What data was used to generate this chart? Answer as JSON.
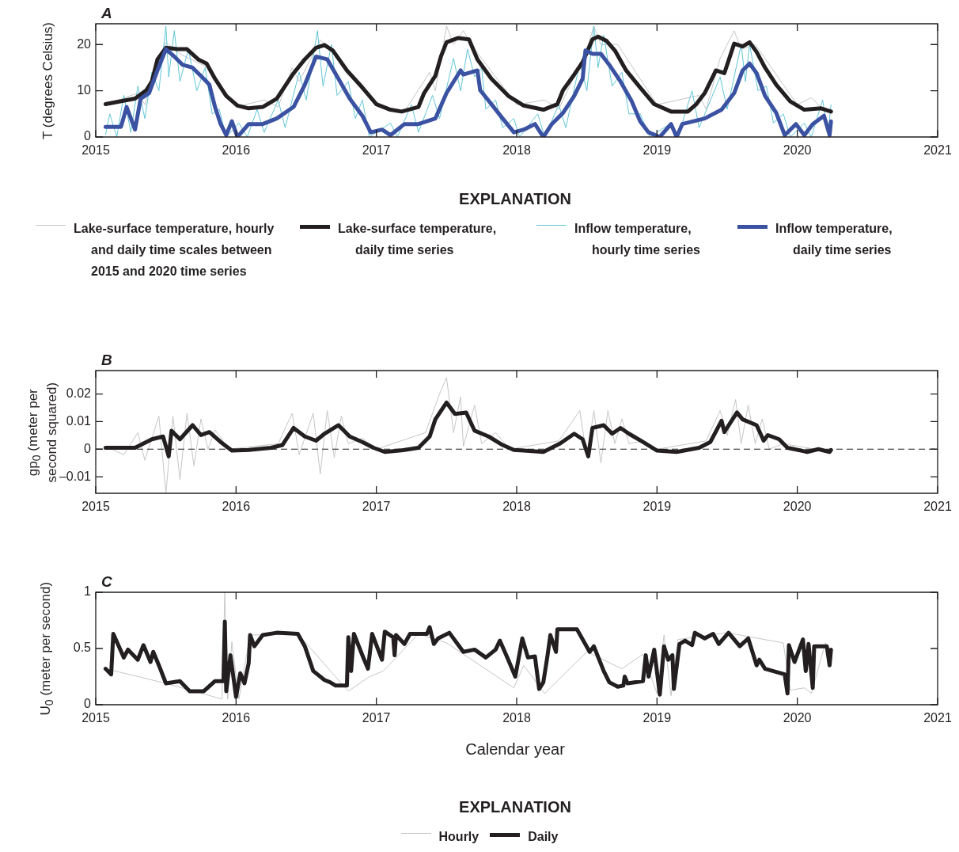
{
  "chart_data": [
    {
      "type": "line",
      "title": "A",
      "ylabel": "T (degrees Celsius)",
      "legend": "bottom",
      "legend_title": "EXPLANATION",
      "marker": "none",
      "line_style": "solid",
      "xlim": [
        2015,
        2021
      ],
      "xticks": [
        2015,
        2016,
        2017,
        2018,
        2019,
        2020,
        2021
      ],
      "ylim": [
        0,
        24.5
      ],
      "yticks": [
        0,
        10,
        20
      ],
      "series": [
        {
          "name": "Lake-surface temperature, hourly and daily time scales between 2015 and 2020 time series",
          "color": "#c6c6c6",
          "x": [
            2015.07,
            2015.3,
            2015.35,
            2015.45,
            2015.5,
            2015.6,
            2015.8,
            2016.0,
            2016.2,
            2016.3,
            2016.4,
            2016.45,
            2016.6,
            2016.7,
            2017.0,
            2017.2,
            2017.38,
            2017.42,
            2017.5,
            2017.55,
            2017.62,
            2017.7,
            2018.0,
            2018.2,
            2018.3,
            2018.5,
            2018.55,
            2018.6,
            2018.72,
            2019.0,
            2019.3,
            2019.35,
            2019.45,
            2019.55,
            2019.6,
            2019.7,
            2020.0,
            2020.1,
            2020.2,
            2020.24
          ],
          "values": [
            7,
            9.5,
            7,
            17,
            20.5,
            18,
            15,
            6.5,
            8,
            6.5,
            15,
            12,
            21,
            18,
            7,
            5.5,
            14,
            10,
            24,
            20,
            23,
            19,
            7,
            8,
            6,
            19,
            24,
            20,
            20,
            7,
            9,
            6,
            17,
            23,
            19,
            20,
            7,
            8.5,
            5.5,
            6
          ]
        },
        {
          "name": "Lake-surface temperature, daily time series",
          "color": "#231f20",
          "x": [
            2015.07,
            2015.28,
            2015.36,
            2015.4,
            2015.44,
            2015.5,
            2015.58,
            2015.65,
            2015.73,
            2015.79,
            2015.85,
            2015.93,
            2016.01,
            2016.09,
            2016.19,
            2016.29,
            2016.41,
            2016.49,
            2016.57,
            2016.63,
            2016.69,
            2016.79,
            2016.9,
            2017.0,
            2017.1,
            2017.18,
            2017.3,
            2017.34,
            2017.42,
            2017.46,
            2017.5,
            2017.58,
            2017.66,
            2017.72,
            2017.82,
            2017.94,
            2018.05,
            2018.19,
            2018.29,
            2018.33,
            2018.41,
            2018.47,
            2018.54,
            2018.58,
            2018.64,
            2018.7,
            2018.78,
            2018.88,
            2018.98,
            2019.1,
            2019.22,
            2019.28,
            2019.34,
            2019.42,
            2019.48,
            2019.55,
            2019.61,
            2019.66,
            2019.71,
            2019.77,
            2019.85,
            2019.95,
            2020.05,
            2020.17,
            2020.24
          ],
          "values": [
            7.1,
            8.3,
            10.1,
            12,
            16.8,
            19.3,
            19,
            19,
            16.8,
            15.9,
            12.6,
            8.9,
            6.8,
            6.2,
            6.5,
            8.3,
            13.8,
            16.8,
            19.3,
            19.9,
            18.7,
            14.4,
            10.7,
            7.1,
            5.9,
            5.5,
            6.5,
            9.5,
            13.2,
            17.4,
            20.5,
            21.4,
            21.1,
            16.8,
            12.6,
            8.9,
            6.8,
            5.9,
            7.1,
            10.1,
            13.5,
            16.2,
            21.1,
            21.7,
            20.8,
            18.7,
            14.4,
            10.7,
            7.1,
            5.5,
            5.5,
            7.1,
            9.5,
            14.4,
            13.8,
            20.2,
            19.6,
            20.5,
            18.4,
            15,
            11.3,
            7.7,
            5.9,
            6.2,
            5.5
          ]
        },
        {
          "name": "Inflow temperature, hourly time series",
          "color": "#62c6d8",
          "x": [
            2015.07,
            2015.1,
            2015.15,
            2015.2,
            2015.25,
            2015.3,
            2015.35,
            2015.4,
            2015.45,
            2015.5,
            2015.52,
            2015.56,
            2015.6,
            2015.66,
            2015.72,
            2015.78,
            2015.83,
            2015.88,
            2015.93,
            2016.02,
            2016.08,
            2016.15,
            2016.2,
            2016.3,
            2016.35,
            2016.45,
            2016.5,
            2016.58,
            2016.62,
            2016.68,
            2016.72,
            2016.8,
            2016.85,
            2016.9,
            2016.95,
            2017.1,
            2017.15,
            2017.25,
            2017.3,
            2017.4,
            2017.45,
            2017.55,
            2017.6,
            2017.65,
            2017.7,
            2017.75,
            2017.78,
            2017.85,
            2017.9,
            2017.98,
            2018.02,
            2018.15,
            2018.2,
            2018.3,
            2018.35,
            2018.45,
            2018.5,
            2018.55,
            2018.58,
            2018.62,
            2018.68,
            2018.75,
            2018.8,
            2018.88,
            2018.95,
            2019.1,
            2019.15,
            2019.25,
            2019.3,
            2019.45,
            2019.5,
            2019.6,
            2019.63,
            2019.66,
            2019.72,
            2019.78,
            2019.83,
            2019.9,
            2019.95,
            2020.05,
            2020.1,
            2020.18,
            2020.22,
            2020.24
          ],
          "values": [
            0.5,
            5,
            0,
            9,
            1,
            11,
            4,
            14,
            10,
            24,
            13,
            23,
            12,
            19,
            10,
            15,
            5,
            6,
            0,
            3,
            0,
            6,
            1,
            8,
            2,
            14,
            8,
            23,
            11,
            20,
            9,
            12,
            4,
            8,
            0,
            3,
            0,
            7,
            1,
            9,
            4,
            17,
            10,
            19,
            13,
            15,
            6,
            8,
            2,
            4,
            0,
            5,
            0,
            7,
            2,
            16,
            10,
            24,
            15,
            22,
            11,
            14,
            5,
            5,
            0,
            3,
            0,
            10,
            2,
            13,
            6,
            20,
            12,
            20,
            10,
            11,
            3,
            5,
            0,
            3,
            0,
            8,
            1,
            7
          ]
        },
        {
          "name": "Inflow temperature, daily time series",
          "color": "#3b52a3",
          "x": [
            2015.07,
            2015.18,
            2015.22,
            2015.28,
            2015.32,
            2015.38,
            2015.44,
            2015.5,
            2015.56,
            2015.62,
            2015.69,
            2015.77,
            2015.81,
            2015.85,
            2015.89,
            2015.93,
            2015.97,
            2016.01,
            2016.09,
            2016.19,
            2016.29,
            2016.41,
            2016.49,
            2016.57,
            2016.65,
            2016.73,
            2016.81,
            2016.9,
            2016.96,
            2017.04,
            2017.1,
            2017.2,
            2017.3,
            2017.42,
            2017.5,
            2017.6,
            2017.62,
            2017.72,
            2017.74,
            2017.82,
            2017.9,
            2017.98,
            2018.05,
            2018.13,
            2018.19,
            2018.25,
            2018.33,
            2018.41,
            2018.47,
            2018.49,
            2018.54,
            2018.6,
            2018.66,
            2018.74,
            2018.82,
            2018.88,
            2018.94,
            2019.02,
            2019.1,
            2019.14,
            2019.18,
            2019.34,
            2019.46,
            2019.55,
            2019.61,
            2019.66,
            2019.71,
            2019.77,
            2019.85,
            2019.91,
            2019.99,
            2020.05,
            2020.11,
            2020.19,
            2020.23,
            2020.24
          ],
          "values": [
            2.2,
            2.2,
            6.5,
            1.6,
            8.3,
            9.5,
            14.4,
            19,
            17.4,
            15.6,
            15,
            12.6,
            11.3,
            6.5,
            2.8,
            0.4,
            3.4,
            0,
            2.8,
            2.8,
            4,
            6.5,
            11.3,
            17.4,
            16.8,
            12.6,
            8.3,
            4.6,
            1,
            1.6,
            0.4,
            2.8,
            2.8,
            4,
            9.5,
            14.4,
            13.5,
            14.4,
            10.1,
            7.1,
            4,
            1,
            1.6,
            2.8,
            0,
            2.8,
            5.2,
            8.9,
            12.6,
            18.7,
            18,
            18,
            15.6,
            12,
            7.7,
            3.4,
            1,
            0,
            2.8,
            0,
            2.8,
            4,
            5.9,
            9.5,
            14.4,
            15.9,
            13.8,
            8.9,
            5.2,
            0.4,
            2.8,
            0.4,
            2.8,
            4.6,
            0.4,
            3.4
          ]
        }
      ]
    },
    {
      "type": "line",
      "title": "B",
      "ylabel": "gp$_{0}$ (meter per second squared)",
      "legend": false,
      "marker": "none",
      "line_style": "solid",
      "xlim": [
        2015,
        2021
      ],
      "xticks": [
        2015,
        2016,
        2017,
        2018,
        2019,
        2020,
        2021
      ],
      "ylim": [
        -0.016,
        0.0285
      ],
      "yticks": [
        {
          "value": -0.01,
          "label": "–0.01"
        },
        0,
        0.01,
        0.02
      ],
      "ref_lines": [
        {
          "axis": "y",
          "value": 0,
          "line_style": "dashed",
          "color": "#231f20"
        }
      ],
      "series": [
        {
          "color": "#c6c6c6",
          "x": [
            2015.07,
            2015.2,
            2015.3,
            2015.35,
            2015.45,
            2015.5,
            2015.55,
            2015.6,
            2015.65,
            2015.7,
            2015.75,
            2015.8,
            2015.85,
            2015.95,
            2016.3,
            2016.4,
            2016.45,
            2016.55,
            2016.6,
            2016.65,
            2016.7,
            2016.75,
            2016.8,
            2016.9,
            2017.0,
            2017.35,
            2017.45,
            2017.5,
            2017.55,
            2017.6,
            2017.62,
            2017.7,
            2017.75,
            2017.85,
            2017.95,
            2018.3,
            2018.45,
            2018.5,
            2018.55,
            2018.6,
            2018.65,
            2018.7,
            2018.75,
            2018.8,
            2018.9,
            2019.0,
            2019.35,
            2019.45,
            2019.5,
            2019.56,
            2019.6,
            2019.65,
            2019.7,
            2019.75,
            2019.8,
            2019.9,
            2020.24
          ],
          "values": [
            0.001,
            -0.002,
            0.006,
            -0.004,
            0.012,
            -0.016,
            0.012,
            -0.011,
            0.013,
            -0.006,
            0.011,
            0,
            0.007,
            0,
            0.002,
            0.013,
            -0.002,
            0.013,
            -0.009,
            0.014,
            -0.003,
            0.012,
            0.002,
            0.004,
            0,
            0.006,
            0.02,
            0.026,
            0.006,
            0.019,
            0.001,
            0.016,
            0.002,
            0.006,
            0,
            0.003,
            0.014,
            -0.003,
            0.014,
            -0.005,
            0.014,
            0.002,
            0.011,
            0.002,
            0.003,
            0,
            0.003,
            0.014,
            0.005,
            0.018,
            0.002,
            0.016,
            0.002,
            0.011,
            0,
            0.002,
            -0.001
          ]
        },
        {
          "color": "#231f20",
          "x": [
            2015.07,
            2015.28,
            2015.4,
            2015.48,
            2015.52,
            2015.54,
            2015.6,
            2015.69,
            2015.75,
            2015.81,
            2015.89,
            2015.97,
            2016.09,
            2016.25,
            2016.33,
            2016.41,
            2016.49,
            2016.57,
            2016.63,
            2016.73,
            2016.81,
            2016.9,
            2016.98,
            2017.06,
            2017.2,
            2017.3,
            2017.38,
            2017.42,
            2017.5,
            2017.56,
            2017.64,
            2017.7,
            2017.8,
            2017.9,
            2017.98,
            2018.05,
            2018.19,
            2018.31,
            2018.41,
            2018.47,
            2018.51,
            2018.54,
            2018.62,
            2018.68,
            2018.74,
            2018.8,
            2018.9,
            2019.0,
            2019.14,
            2019.3,
            2019.38,
            2019.46,
            2019.48,
            2019.57,
            2019.61,
            2019.71,
            2019.76,
            2019.79,
            2019.87,
            2019.93,
            2020.07,
            2020.15,
            2020.23,
            2020.24
          ],
          "values": [
            0.0005,
            0.0005,
            0.0036,
            0.0046,
            -0.0026,
            0.0067,
            0.0036,
            0.0087,
            0.0051,
            0.0062,
            0.0026,
            -0.0005,
            -0.0003,
            0.0005,
            0.0015,
            0.0077,
            0.0046,
            0.0031,
            0.0056,
            0.0087,
            0.0046,
            0.0026,
            0.0005,
            -0.001,
            -0.0003,
            0.0005,
            0.0046,
            0.0108,
            0.0169,
            0.0128,
            0.0133,
            0.0067,
            0.0046,
            0.0015,
            -0.0003,
            -0.0005,
            -0.001,
            0.0021,
            0.0056,
            0.0036,
            -0.0026,
            0.0077,
            0.0087,
            0.0056,
            0.0077,
            0.0056,
            0.0026,
            -0.0005,
            -0.001,
            0.0005,
            0.0026,
            0.0103,
            0.0062,
            0.0133,
            0.0108,
            0.0087,
            0.0031,
            0.0051,
            0.0036,
            0.0005,
            -0.001,
            0,
            -0.001,
            -0.0003
          ]
        }
      ]
    },
    {
      "type": "line",
      "title": "C",
      "ylabel": "U$_{0}$ (meter per second)",
      "xlabel": "Calendar year",
      "legend": "bottom",
      "legend_title": "EXPLANATION",
      "marker": "none",
      "line_style": "solid",
      "xlim": [
        2015,
        2021
      ],
      "xticks": [
        2015,
        2016,
        2017,
        2018,
        2019,
        2020,
        2021
      ],
      "ylim": [
        0,
        1
      ],
      "yticks": [
        0,
        0.5,
        1
      ],
      "series": [
        {
          "name": "Hourly",
          "color": "#c6c6c6",
          "x": [
            2015.07,
            2015.5,
            2015.9,
            2015.92,
            2015.94,
            2015.97,
            2016.02,
            2016.1,
            2016.44,
            2016.8,
            2016.95,
            2017.05,
            2017.3,
            2017.5,
            2017.98,
            2018.05,
            2018.2,
            2018.5,
            2018.75,
            2018.9,
            2019.0,
            2019.05,
            2019.1,
            2019.15,
            2019.5,
            2019.9,
            2019.95,
            2020.05,
            2020.1,
            2020.2,
            2020.24
          ],
          "values": [
            0.32,
            0.19,
            0.05,
            1,
            0.05,
            0.56,
            0.05,
            0.62,
            0.63,
            0.12,
            0.25,
            0.3,
            0.63,
            0.55,
            0.15,
            0.35,
            0.1,
            0.47,
            0.32,
            0.45,
            0.1,
            0.62,
            0.08,
            0.58,
            0.64,
            0.55,
            0.13,
            0.15,
            0.1,
            0.55,
            0.48
          ]
        },
        {
          "name": "Daily",
          "color": "#231f20",
          "x": [
            2015.07,
            2015.11,
            2015.125,
            2015.2,
            2015.23,
            2015.3,
            2015.34,
            2015.39,
            2015.41,
            2015.46,
            2015.5,
            2015.6,
            2015.67,
            2015.77,
            2015.85,
            2015.91,
            2015.92,
            2015.93,
            2015.96,
            2016.0,
            2016.03,
            2016.06,
            2016.09,
            2016.1,
            2016.13,
            2016.19,
            2016.29,
            2016.44,
            2016.49,
            2016.55,
            2016.63,
            2016.67,
            2016.71,
            2016.79,
            2016.8,
            2016.82,
            2016.84,
            2016.9,
            2016.94,
            2016.97,
            2017.04,
            2017.06,
            2017.12,
            2017.13,
            2017.14,
            2017.2,
            2017.24,
            2017.36,
            2017.38,
            2017.41,
            2017.44,
            2017.52,
            2017.62,
            2017.7,
            2017.78,
            2017.85,
            2017.88,
            2017.94,
            2017.99,
            2018.04,
            2018.08,
            2018.13,
            2018.16,
            2018.19,
            2018.22,
            2018.24,
            2018.28,
            2018.29,
            2018.43,
            2018.52,
            2018.55,
            2018.62,
            2018.66,
            2018.72,
            2018.76,
            2018.77,
            2018.79,
            2018.9,
            2018.92,
            2018.94,
            2018.98,
            2019.02,
            2019.05,
            2019.08,
            2019.11,
            2019.12,
            2019.16,
            2019.2,
            2019.25,
            2019.27,
            2019.34,
            2019.4,
            2019.44,
            2019.51,
            2019.59,
            2019.65,
            2019.71,
            2019.73,
            2019.77,
            2019.91,
            2019.93,
            2019.94,
            2019.98,
            2020.04,
            2020.06,
            2020.08,
            2020.11,
            2020.12,
            2020.21,
            2020.23,
            2020.24
          ],
          "values": [
            0.32,
            0.27,
            0.63,
            0.42,
            0.49,
            0.4,
            0.53,
            0.38,
            0.47,
            0.32,
            0.19,
            0.21,
            0.12,
            0.12,
            0.21,
            0.21,
            0.74,
            0.12,
            0.44,
            0.07,
            0.28,
            0.19,
            0.37,
            0.62,
            0.52,
            0.62,
            0.64,
            0.63,
            0.52,
            0.3,
            0.22,
            0.2,
            0.17,
            0.17,
            0.6,
            0.3,
            0.63,
            0.44,
            0.32,
            0.63,
            0.4,
            0.65,
            0.6,
            0.44,
            0.62,
            0.54,
            0.63,
            0.63,
            0.69,
            0.54,
            0.59,
            0.64,
            0.47,
            0.49,
            0.42,
            0.49,
            0.57,
            0.4,
            0.25,
            0.59,
            0.42,
            0.43,
            0.14,
            0.2,
            0.44,
            0.62,
            0.47,
            0.67,
            0.67,
            0.47,
            0.52,
            0.3,
            0.2,
            0.16,
            0.17,
            0.25,
            0.19,
            0.21,
            0.44,
            0.25,
            0.49,
            0.09,
            0.52,
            0.4,
            0.44,
            0.14,
            0.54,
            0.57,
            0.53,
            0.64,
            0.59,
            0.63,
            0.54,
            0.64,
            0.52,
            0.59,
            0.35,
            0.4,
            0.32,
            0.27,
            0.1,
            0.53,
            0.38,
            0.58,
            0.3,
            0.54,
            0.15,
            0.52,
            0.52,
            0.35,
            0.49
          ]
        }
      ]
    }
  ]
}
